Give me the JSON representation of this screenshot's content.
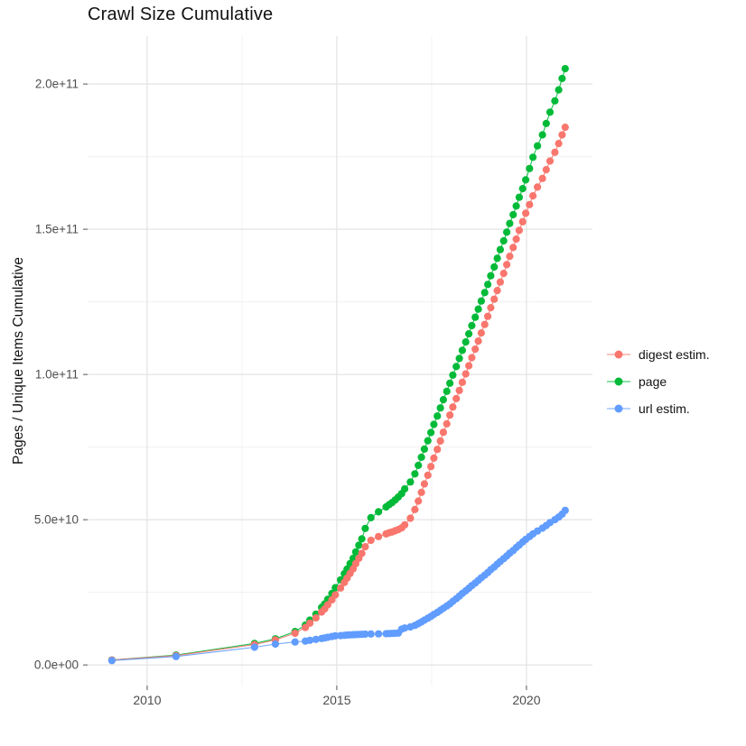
{
  "title": "Crawl Size Cumulative",
  "y_axis_title": "Pages / Unique Items Cumulative",
  "colors": {
    "digest": "#F8766D",
    "page": "#00BA38",
    "url": "#619CFF",
    "grid_major": "#E3E3E3",
    "grid_minor": "#F0F0F0",
    "tick_mark": "#555555",
    "tick_label": "#4D4D4D",
    "text": "#111111"
  },
  "chart_data": {
    "type": "scatter",
    "title": "Crawl Size Cumulative",
    "xlabel": "",
    "ylabel": "Pages / Unique Items Cumulative",
    "x_unit": "year (decimal)",
    "y_unit": "billions of items (value x 1e9)",
    "grid": true,
    "legend_position": "right",
    "xlim": [
      2008.43,
      2021.74
    ],
    "ylim_billions": [
      -7.1,
      216.5
    ],
    "x_ticks": {
      "major": [
        2010,
        2015,
        2020
      ],
      "minor": [
        2012.5,
        2017.5
      ],
      "labels": [
        "2010",
        "2015",
        "2020"
      ]
    },
    "y_ticks": {
      "major": [
        0,
        50,
        100,
        150,
        200
      ],
      "minor": [
        25,
        75,
        125,
        175
      ],
      "labels": [
        "0.0e+00",
        "5.0e+10",
        "1.0e+11",
        "1.5e+11",
        "2.0e+11"
      ]
    },
    "x": [
      2009.07,
      2010.76,
      2012.83,
      2013.38,
      2013.9,
      2014.17,
      2014.29,
      2014.45,
      2014.6,
      2014.68,
      2014.76,
      2014.87,
      2014.96,
      2015.1,
      2015.2,
      2015.27,
      2015.35,
      2015.43,
      2015.5,
      2015.58,
      2015.66,
      2015.75,
      2015.9,
      2016.1,
      2016.3,
      2016.38,
      2016.46,
      2016.54,
      2016.62,
      2016.71,
      2016.79,
      2016.94,
      2017.06,
      2017.15,
      2017.23,
      2017.31,
      2017.4,
      2017.48,
      2017.56,
      2017.65,
      2017.73,
      2017.81,
      2017.9,
      2017.98,
      2018.06,
      2018.15,
      2018.23,
      2018.31,
      2018.4,
      2018.48,
      2018.56,
      2018.65,
      2018.73,
      2018.81,
      2018.9,
      2018.98,
      2019.06,
      2019.15,
      2019.23,
      2019.31,
      2019.4,
      2019.48,
      2019.56,
      2019.65,
      2019.73,
      2019.81,
      2019.9,
      2019.98,
      2020.08,
      2020.17,
      2020.29,
      2020.42,
      2020.52,
      2020.62,
      2020.75,
      2020.85,
      2020.94,
      2021.02
    ],
    "series": [
      {
        "name": "digest estim.",
        "color": "#F8766D",
        "z": 2,
        "values_billions": [
          1.7,
          3.2,
          7.0,
          8.6,
          10.9,
          12.9,
          14.4,
          16.2,
          18.2,
          19.3,
          20.7,
          22.4,
          24.1,
          26.5,
          28.4,
          29.9,
          31.5,
          33.1,
          34.9,
          36.7,
          38.4,
          40.7,
          42.9,
          44.2,
          45.1,
          45.5,
          45.8,
          46.2,
          46.6,
          47.2,
          48.2,
          50.5,
          53.5,
          56.4,
          59.4,
          62.3,
          65.3,
          68.3,
          71.2,
          74.2,
          77.1,
          80.1,
          83.0,
          86.0,
          88.8,
          91.7,
          94.5,
          97.3,
          100.2,
          103.0,
          105.8,
          108.7,
          111.5,
          114.3,
          117.2,
          120.0,
          123.0,
          125.9,
          128.9,
          131.8,
          134.8,
          137.8,
          140.7,
          143.7,
          146.6,
          149.6,
          152.6,
          155.5,
          158.5,
          161.5,
          164.5,
          167.5,
          170.5,
          173.5,
          176.5,
          179.5,
          182.5,
          185.1
        ]
      },
      {
        "name": "page",
        "color": "#00BA38",
        "z": 1,
        "values_billions": [
          1.7,
          3.4,
          7.4,
          9.0,
          11.5,
          13.7,
          15.4,
          17.5,
          19.8,
          21.0,
          22.6,
          24.6,
          26.6,
          29.3,
          31.4,
          33.0,
          34.9,
          36.7,
          38.9,
          41.2,
          43.4,
          47.0,
          50.7,
          52.7,
          54.4,
          55.2,
          55.9,
          56.8,
          57.8,
          59.0,
          60.6,
          63.0,
          65.8,
          68.7,
          71.5,
          74.3,
          77.2,
          80.0,
          82.8,
          85.7,
          88.5,
          91.3,
          94.2,
          97.0,
          99.8,
          102.7,
          105.5,
          108.3,
          111.2,
          114.0,
          116.8,
          119.7,
          122.5,
          125.3,
          128.2,
          131.0,
          134.0,
          137.0,
          140.0,
          143.0,
          146.0,
          149.0,
          152.0,
          155.0,
          158.0,
          161.0,
          164.0,
          167.0,
          170.9,
          174.8,
          178.7,
          182.5,
          186.4,
          190.3,
          194.2,
          198.0,
          201.9,
          205.3
        ]
      },
      {
        "name": "url estim.",
        "color": "#619CFF",
        "z": 3,
        "values_billions": [
          1.5,
          2.9,
          6.1,
          7.2,
          7.9,
          8.2,
          8.5,
          8.8,
          9.1,
          9.3,
          9.5,
          9.8,
          10.0,
          10.1,
          10.2,
          10.3,
          10.35,
          10.4,
          10.45,
          10.5,
          10.55,
          10.6,
          10.65,
          10.7,
          10.75,
          10.8,
          10.85,
          10.9,
          10.95,
          12.3,
          12.7,
          13.1,
          13.6,
          14.2,
          14.8,
          15.4,
          16.1,
          16.7,
          17.4,
          18.1,
          18.8,
          19.5,
          20.3,
          21.0,
          21.9,
          22.8,
          23.7,
          24.6,
          25.5,
          26.4,
          27.3,
          28.2,
          29.1,
          30.0,
          30.9,
          31.8,
          32.8,
          33.7,
          34.7,
          35.6,
          36.6,
          37.5,
          38.5,
          39.4,
          40.4,
          41.3,
          42.3,
          43.2,
          44.2,
          45.1,
          46.1,
          47.1,
          48.0,
          49.0,
          50.0,
          50.9,
          51.9,
          53.2
        ]
      }
    ]
  }
}
